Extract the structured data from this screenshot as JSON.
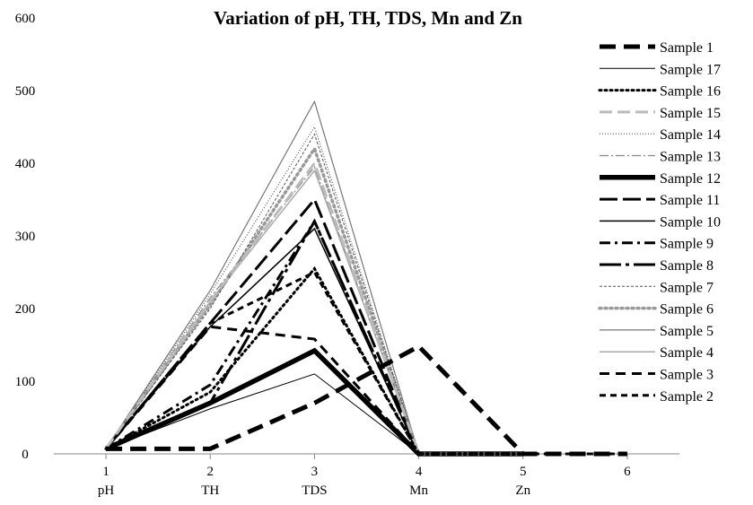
{
  "chart_data": {
    "type": "line",
    "title": "Variation of pH, TH, TDS, Mn and Zn",
    "xlabel": "",
    "ylabel": "",
    "x": [
      1,
      2,
      3,
      4,
      5,
      6
    ],
    "x_category_labels": [
      "pH",
      "TH",
      "TDS",
      "Mn",
      "Zn",
      ""
    ],
    "yticks": [
      0,
      100,
      200,
      300,
      400,
      500,
      600
    ],
    "ylim": [
      0,
      600
    ],
    "xlim": [
      0.5,
      6.5
    ],
    "grid": false,
    "legend_position": "right",
    "series": [
      {
        "name": "Sample 1",
        "color": "#000000",
        "values": [
          7,
          7,
          70,
          148,
          0,
          0
        ]
      },
      {
        "name": "Sample 17",
        "color": "#000000",
        "values": [
          7,
          62,
          110,
          0,
          0,
          null
        ]
      },
      {
        "name": "Sample 16",
        "color": "#000000",
        "values": [
          7,
          85,
          255,
          0,
          0,
          null
        ]
      },
      {
        "name": "Sample 15",
        "color": "#bbbbbb",
        "values": [
          7,
          210,
          400,
          0,
          0,
          null
        ]
      },
      {
        "name": "Sample 14",
        "color": "#555555",
        "values": [
          7,
          220,
          450,
          0,
          0,
          null
        ]
      },
      {
        "name": "Sample 13",
        "color": "#888888",
        "values": [
          7,
          215,
          395,
          0,
          0,
          null
        ]
      },
      {
        "name": "Sample 12",
        "color": "#000000",
        "values": [
          7,
          70,
          142,
          0,
          0,
          null
        ]
      },
      {
        "name": "Sample 11",
        "color": "#000000",
        "values": [
          7,
          180,
          350,
          0,
          0,
          null
        ]
      },
      {
        "name": "Sample 10",
        "color": "#000000",
        "values": [
          7,
          175,
          310,
          0,
          0,
          null
        ]
      },
      {
        "name": "Sample 9",
        "color": "#000000",
        "values": [
          7,
          95,
          320,
          0,
          0,
          null
        ]
      },
      {
        "name": "Sample 8",
        "color": "#000000",
        "values": [
          7,
          70,
          320,
          0,
          0,
          null
        ]
      },
      {
        "name": "Sample 7",
        "color": "#555555",
        "values": [
          7,
          200,
          440,
          0,
          0,
          null
        ]
      },
      {
        "name": "Sample 6",
        "color": "#999999",
        "values": [
          7,
          205,
          420,
          0,
          0,
          null
        ]
      },
      {
        "name": "Sample 5",
        "color": "#777777",
        "values": [
          7,
          225,
          485,
          0,
          0,
          null
        ]
      },
      {
        "name": "Sample 4",
        "color": "#aaaaaa",
        "values": [
          7,
          210,
          390,
          0,
          0,
          null
        ]
      },
      {
        "name": "Sample 3",
        "color": "#000000",
        "values": [
          7,
          175,
          158,
          0,
          0,
          null
        ]
      },
      {
        "name": "Sample 2",
        "color": "#000000",
        "values": [
          7,
          180,
          250,
          0,
          0,
          0
        ]
      }
    ]
  }
}
